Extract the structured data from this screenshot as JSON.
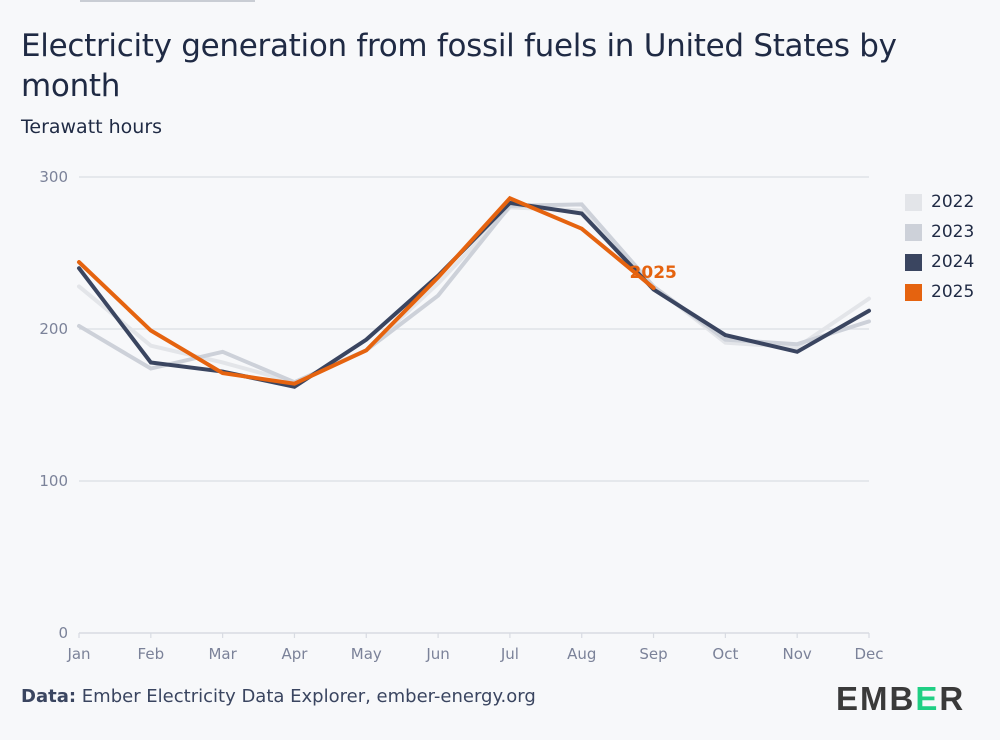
{
  "header": {
    "title": "Electricity generation from fossil fuels in United States by month",
    "subtitle": "Terawatt hours"
  },
  "footer": {
    "source_label": "Data:",
    "source_text": "Ember Electricity Data Explorer, ember-energy.org",
    "logo_text": [
      "E",
      "M",
      "B",
      "E",
      "R"
    ]
  },
  "chart_data": {
    "type": "line",
    "title": "Electricity generation from fossil fuels in United States by month",
    "subtitle": "Terawatt hours",
    "xlabel": "",
    "ylabel": "Terawatt hours",
    "categories": [
      "Jan",
      "Feb",
      "Mar",
      "Apr",
      "May",
      "Jun",
      "Jul",
      "Aug",
      "Sep",
      "Oct",
      "Nov",
      "Dec"
    ],
    "ylim": [
      0,
      300
    ],
    "yticks": [
      0,
      100,
      200,
      300
    ],
    "grid": true,
    "legend_position": "right",
    "series": [
      {
        "name": "2022",
        "color": "#e3e5e9",
        "values": [
          228,
          189,
          178,
          165,
          186,
          230,
          280,
          278,
          228,
          191,
          188,
          220
        ]
      },
      {
        "name": "2023",
        "color": "#cdd1d9",
        "values": [
          202,
          174,
          185,
          165,
          186,
          222,
          281,
          282,
          228,
          193,
          190,
          205
        ]
      },
      {
        "name": "2024",
        "color": "#3a4560",
        "values": [
          240,
          178,
          172,
          162,
          193,
          235,
          283,
          276,
          226,
          196,
          185,
          212
        ]
      },
      {
        "name": "2025",
        "color": "#e5630f",
        "values": [
          244,
          199,
          171,
          164,
          186,
          234,
          286,
          266,
          227
        ]
      }
    ],
    "annotations": [
      {
        "text": "2025",
        "series": "2025",
        "at": "Sep"
      }
    ]
  }
}
